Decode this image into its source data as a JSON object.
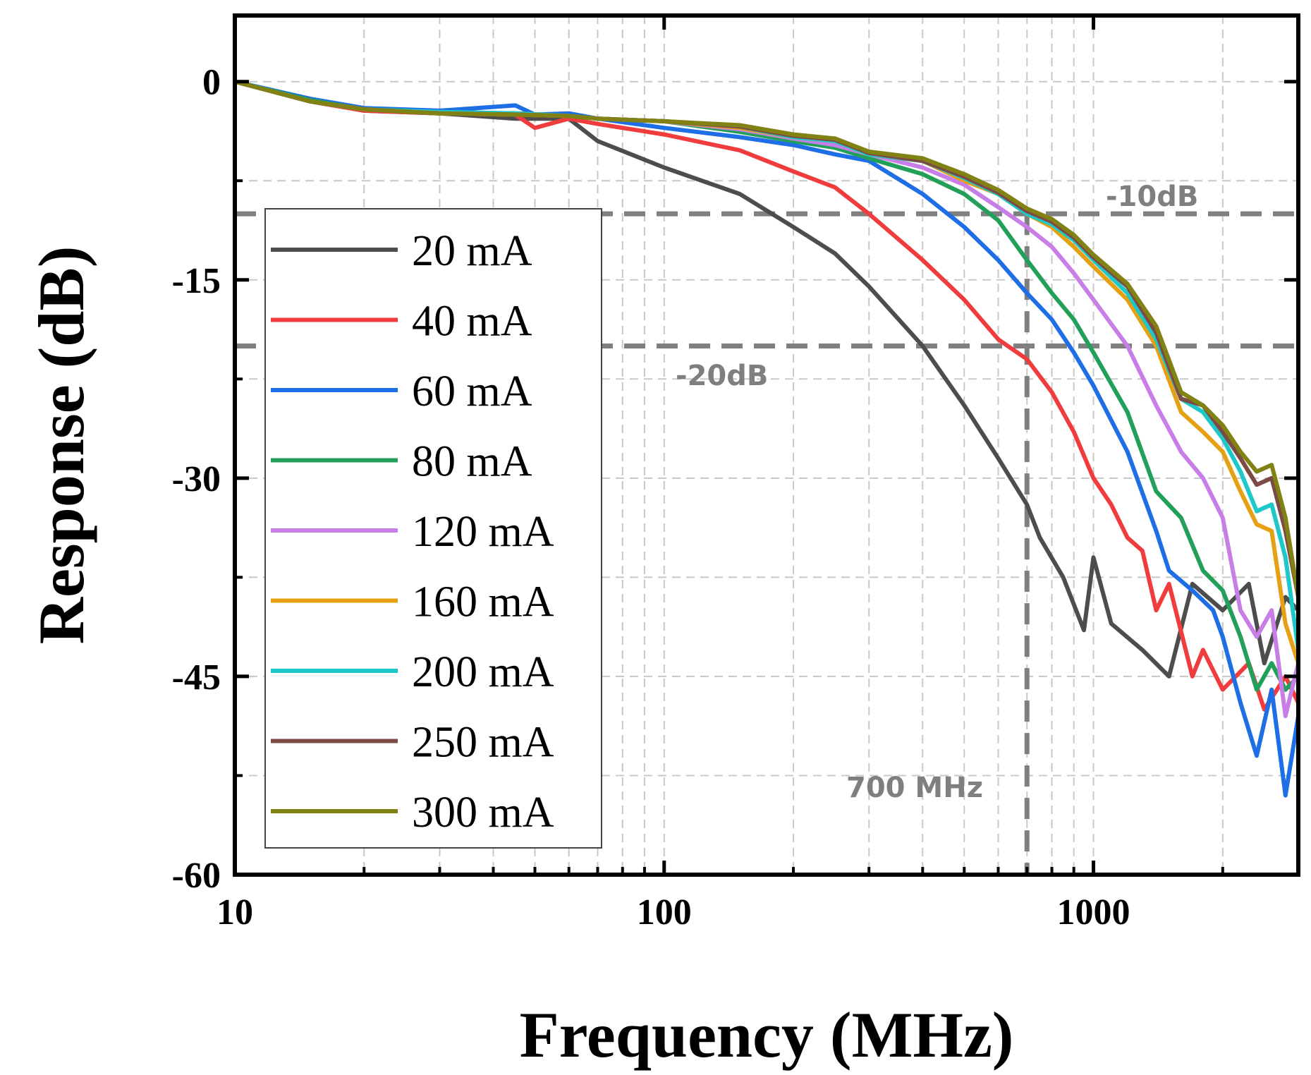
{
  "chart_data": {
    "type": "line",
    "title": "",
    "xlabel": "Frequency (MHz)",
    "ylabel": "Response (dB)",
    "x_scale": "log",
    "xlim": [
      10,
      3000
    ],
    "ylim": [
      -60,
      5
    ],
    "x_ticks": [
      {
        "value": 10,
        "label": "10"
      },
      {
        "value": 100,
        "label": "100"
      },
      {
        "value": 1000,
        "label": "1000"
      }
    ],
    "y_ticks": [
      {
        "value": 0,
        "label": "0"
      },
      {
        "value": -15,
        "label": "-15"
      },
      {
        "value": -30,
        "label": "-30"
      },
      {
        "value": -45,
        "label": "-45"
      },
      {
        "value": -60,
        "label": "-60"
      }
    ],
    "grid": true,
    "legend_position": "left",
    "annotations": [
      {
        "text": "-10dB",
        "type": "hline",
        "value": -10
      },
      {
        "text": "-20dB",
        "type": "hline",
        "value": -20
      },
      {
        "text": "700 MHz",
        "type": "vline",
        "value": 700
      }
    ],
    "series": [
      {
        "name": "20 mA",
        "color": "#4d4d4d",
        "x": [
          10,
          15,
          20,
          30,
          45,
          60,
          70,
          100,
          150,
          200,
          250,
          300,
          400,
          500,
          600,
          700,
          750,
          850,
          950,
          1000,
          1100,
          1300,
          1500,
          1700,
          2000,
          2300,
          2500,
          2800,
          3000
        ],
        "y": [
          0,
          -1.5,
          -2.2,
          -2.4,
          -2.8,
          -2.8,
          -4.5,
          -6.5,
          -8.5,
          -11,
          -13,
          -15.5,
          -20,
          -24.5,
          -28.5,
          -32,
          -34.5,
          -37.5,
          -41.5,
          -36,
          -41,
          -43,
          -45,
          -38,
          -40,
          -38,
          -44,
          -39,
          -40
        ]
      },
      {
        "name": "40 mA",
        "color": "#f03c3c",
        "x": [
          10,
          15,
          20,
          30,
          45,
          50,
          60,
          70,
          100,
          150,
          200,
          250,
          300,
          400,
          500,
          600,
          700,
          800,
          900,
          1000,
          1100,
          1200,
          1300,
          1400,
          1500,
          1700,
          1800,
          2000,
          2300,
          2500,
          2800,
          3000
        ],
        "y": [
          0,
          -1.5,
          -2.2,
          -2.4,
          -2.5,
          -3.5,
          -2.8,
          -3.2,
          -4,
          -5.2,
          -6.8,
          -8,
          -10,
          -13.5,
          -16.5,
          -19.5,
          -21,
          -23.5,
          -26.5,
          -30,
          -32,
          -34.5,
          -35.5,
          -40,
          -38,
          -45,
          -43,
          -46,
          -44,
          -47.5,
          -45,
          -47
        ]
      },
      {
        "name": "60 mA",
        "color": "#1e6ee6",
        "x": [
          10,
          15,
          20,
          30,
          45,
          50,
          60,
          70,
          100,
          150,
          200,
          250,
          300,
          400,
          500,
          600,
          700,
          800,
          900,
          1000,
          1200,
          1400,
          1500,
          1700,
          1900,
          2000,
          2200,
          2400,
          2600,
          2800,
          3000
        ],
        "y": [
          0,
          -1.3,
          -2,
          -2.2,
          -1.8,
          -2.5,
          -2.4,
          -2.8,
          -3.5,
          -4.2,
          -4.8,
          -5.5,
          -6,
          -8.5,
          -11,
          -13.5,
          -16,
          -18,
          -20.5,
          -23,
          -28,
          -34,
          -37,
          -38.5,
          -40,
          -42,
          -47,
          -51,
          -46,
          -54,
          -48
        ]
      },
      {
        "name": "80 mA",
        "color": "#22a05a",
        "x": [
          10,
          15,
          20,
          30,
          45,
          60,
          70,
          100,
          150,
          200,
          250,
          300,
          400,
          500,
          600,
          700,
          800,
          900,
          1000,
          1200,
          1400,
          1600,
          1800,
          2000,
          2200,
          2400,
          2600,
          2800,
          3000
        ],
        "y": [
          0,
          -1.4,
          -2.1,
          -2.3,
          -2.4,
          -2.6,
          -2.8,
          -3,
          -3.8,
          -4.5,
          -5,
          -5.8,
          -7,
          -8.5,
          -10.5,
          -13.5,
          -16,
          -18,
          -20.5,
          -25,
          -31,
          -33,
          -37,
          -38.5,
          -42,
          -46,
          -44,
          -46,
          -45
        ]
      },
      {
        "name": "120 mA",
        "color": "#c87ee6",
        "x": [
          10,
          15,
          20,
          30,
          45,
          60,
          70,
          100,
          150,
          200,
          250,
          300,
          400,
          500,
          600,
          700,
          800,
          900,
          1000,
          1200,
          1400,
          1600,
          1800,
          2000,
          2200,
          2400,
          2600,
          2800,
          3000
        ],
        "y": [
          0,
          -1.5,
          -2.1,
          -2.4,
          -2.5,
          -2.6,
          -2.8,
          -3,
          -3.6,
          -4.3,
          -4.8,
          -5.5,
          -6.5,
          -7.8,
          -9.5,
          -11,
          -12.5,
          -14.5,
          -16.5,
          -20,
          -24.5,
          -28,
          -30,
          -33,
          -40,
          -42,
          -40,
          -48,
          -44
        ]
      },
      {
        "name": "160 mA",
        "color": "#e6a014",
        "x": [
          10,
          15,
          20,
          30,
          45,
          60,
          70,
          100,
          150,
          200,
          250,
          300,
          400,
          500,
          600,
          700,
          800,
          900,
          1000,
          1200,
          1400,
          1600,
          1800,
          2000,
          2200,
          2400,
          2600,
          2800,
          3000
        ],
        "y": [
          0,
          -1.5,
          -2.1,
          -2.4,
          -2.5,
          -2.6,
          -2.8,
          -3,
          -3.5,
          -4.2,
          -4.5,
          -5.5,
          -6,
          -7.5,
          -8.5,
          -10,
          -11,
          -12.5,
          -14,
          -16.5,
          -20,
          -25,
          -26.5,
          -28,
          -31,
          -33.5,
          -34,
          -41,
          -44
        ]
      },
      {
        "name": "200 mA",
        "color": "#1ec8c8",
        "x": [
          10,
          15,
          20,
          30,
          45,
          60,
          70,
          100,
          150,
          200,
          250,
          300,
          400,
          500,
          600,
          700,
          800,
          900,
          1000,
          1200,
          1400,
          1600,
          1800,
          2000,
          2200,
          2400,
          2600,
          2800,
          3000
        ],
        "y": [
          0,
          -1.5,
          -2.1,
          -2.3,
          -2.4,
          -2.6,
          -2.8,
          -3,
          -3.4,
          -4.2,
          -4.5,
          -5.5,
          -6,
          -7.3,
          -8.5,
          -10,
          -10.8,
          -12,
          -13.5,
          -16,
          -19.5,
          -24,
          -25,
          -27,
          -29.5,
          -32.5,
          -32,
          -36,
          -43
        ]
      },
      {
        "name": "250 mA",
        "color": "#7d4b46",
        "x": [
          10,
          15,
          20,
          30,
          45,
          60,
          70,
          100,
          150,
          200,
          250,
          300,
          400,
          500,
          600,
          700,
          800,
          900,
          1000,
          1200,
          1400,
          1600,
          1800,
          2000,
          2200,
          2400,
          2600,
          2800,
          3000
        ],
        "y": [
          0,
          -1.5,
          -2.1,
          -2.4,
          -2.5,
          -2.6,
          -2.8,
          -3,
          -3.4,
          -4.1,
          -4.4,
          -5.4,
          -6,
          -7.2,
          -8.4,
          -9.8,
          -10.6,
          -11.8,
          -13.3,
          -15.5,
          -19,
          -24,
          -24.5,
          -26.5,
          -28.5,
          -30.5,
          -30,
          -34,
          -39
        ]
      },
      {
        "name": "300 mA",
        "color": "#828214",
        "x": [
          10,
          15,
          20,
          30,
          45,
          60,
          70,
          100,
          150,
          200,
          250,
          300,
          400,
          500,
          600,
          700,
          800,
          900,
          1000,
          1200,
          1400,
          1600,
          1800,
          2000,
          2200,
          2400,
          2600,
          2800,
          3000
        ],
        "y": [
          0,
          -1.5,
          -2.1,
          -2.4,
          -2.5,
          -2.6,
          -2.8,
          -3,
          -3.3,
          -4,
          -4.3,
          -5.3,
          -5.8,
          -7,
          -8.2,
          -9.6,
          -10.4,
          -11.6,
          -13.1,
          -15.3,
          -18.5,
          -23.5,
          -24.5,
          -26,
          -28,
          -29.5,
          -29,
          -33,
          -39
        ]
      }
    ]
  }
}
